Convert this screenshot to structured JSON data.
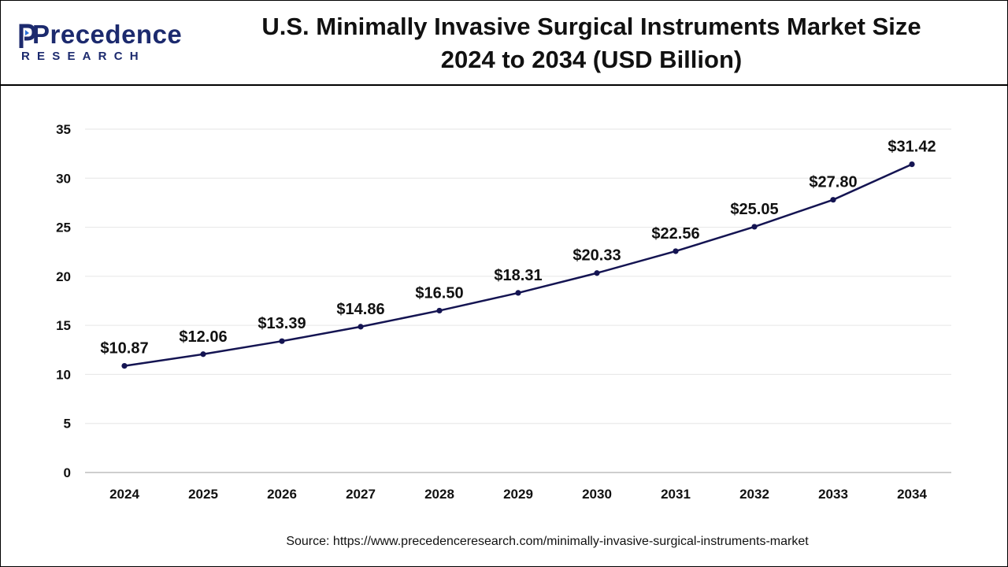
{
  "brand": {
    "logo_word": "Precedence",
    "logo_sub": "RESEARCH",
    "colors": {
      "brand": "#1c2a6e",
      "accent": "#2a6fd6"
    }
  },
  "chart_data": {
    "type": "line",
    "title_line1": "U.S. Minimally Invasive Surgical Instruments Market Size",
    "title_line2": "2024 to 2034 (USD Billion)",
    "categories": [
      "2024",
      "2025",
      "2026",
      "2027",
      "2028",
      "2029",
      "2030",
      "2031",
      "2032",
      "2033",
      "2034"
    ],
    "series": [
      {
        "name": "Market Size (USD Billion)",
        "values": [
          10.87,
          12.06,
          13.39,
          14.86,
          16.5,
          18.31,
          20.33,
          22.56,
          25.05,
          27.8,
          31.42
        ],
        "labels": [
          "$10.87",
          "$12.06",
          "$13.39",
          "$14.86",
          "$16.50",
          "$18.31",
          "$20.33",
          "$22.56",
          "$25.05",
          "$27.80",
          "$31.42"
        ],
        "color": "#141452"
      }
    ],
    "y_ticks": [
      "0",
      "5",
      "10",
      "15",
      "20",
      "25",
      "30",
      "35"
    ],
    "ylim": [
      0,
      35
    ],
    "xlabel": "",
    "ylabel": "",
    "grid": true,
    "legend": "none"
  },
  "source": "Source: https://www.precedenceresearch.com/minimally-invasive-surgical-instruments-market"
}
